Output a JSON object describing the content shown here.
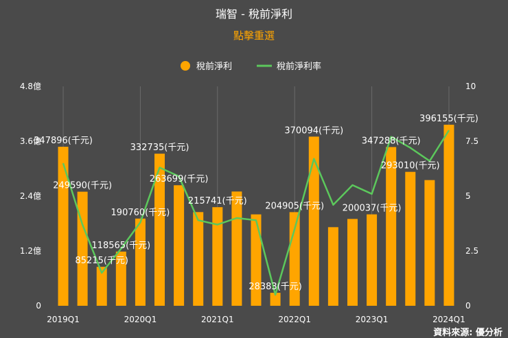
{
  "title": "瑞智 - 稅前淨利",
  "subtitle": "點擊重選",
  "source": "資料來源: 優分析",
  "colors": {
    "background": "#4a4a4a",
    "bar": "#ffa500",
    "line": "#5cc85c",
    "title": "#ffffff",
    "subtitle": "#ffa500",
    "axis_text": "#ffffff",
    "label_text": "#ffffff",
    "gridline": "#6b6b6b"
  },
  "legend": {
    "bar_label": "稅前淨利",
    "line_label": "稅前淨利率",
    "bar_icon": "orange-circle-icon",
    "line_icon": "green-line-icon"
  },
  "chart_data": {
    "type": "bar+line",
    "categories": [
      "2019Q1",
      "2019Q2",
      "2019Q3",
      "2019Q4",
      "2020Q1",
      "2020Q2",
      "2020Q3",
      "2020Q4",
      "2021Q1",
      "2021Q2",
      "2021Q3",
      "2021Q4",
      "2022Q1",
      "2022Q2",
      "2022Q3",
      "2022Q4",
      "2023Q1",
      "2023Q2",
      "2023Q3",
      "2023Q4",
      "2024Q1"
    ],
    "x_tick_labels": [
      "2019Q1",
      "2020Q1",
      "2021Q1",
      "2022Q1",
      "2023Q1",
      "2024Q1"
    ],
    "x_tick_indices": [
      0,
      4,
      8,
      12,
      16,
      20
    ],
    "series": [
      {
        "name": "稅前淨利",
        "type": "bar",
        "axis": "left",
        "values": [
          347896,
          249590,
          85215,
          118565,
          190760,
          332735,
          263699,
          205000,
          215741,
          250000,
          200000,
          28383,
          204905,
          370094,
          172000,
          190000,
          200037,
          347288,
          293010,
          275000,
          396155
        ]
      },
      {
        "name": "稅前淨利率",
        "type": "line",
        "axis": "right",
        "values": [
          6.5,
          3.7,
          1.5,
          2.6,
          3.8,
          6.3,
          5.9,
          3.9,
          3.7,
          4.0,
          3.9,
          0.5,
          3.5,
          6.7,
          4.6,
          5.5,
          5.1,
          7.7,
          7.2,
          6.6,
          8.0
        ]
      }
    ],
    "data_labels": [
      {
        "index": 0,
        "text": "347896(千元)"
      },
      {
        "index": 1,
        "text": "249590(千元)"
      },
      {
        "index": 2,
        "text": "85215(千元)"
      },
      {
        "index": 3,
        "text": "118565(千元)"
      },
      {
        "index": 4,
        "text": "190760(千元)"
      },
      {
        "index": 5,
        "text": "332735(千元)"
      },
      {
        "index": 6,
        "text": "263699(千元)"
      },
      {
        "index": 8,
        "text": "215741(千元)"
      },
      {
        "index": 11,
        "text": "28383(千元)"
      },
      {
        "index": 12,
        "text": "204905(千元)"
      },
      {
        "index": 13,
        "text": "370094(千元)"
      },
      {
        "index": 16,
        "text": "200037(千元)"
      },
      {
        "index": 17,
        "text": "347288(千元)"
      },
      {
        "index": 18,
        "text": "293010(千元)"
      },
      {
        "index": 20,
        "text": "396155(千元)"
      }
    ],
    "y_left": {
      "min": 0,
      "max": 480000,
      "ticks": [
        0,
        120000,
        240000,
        360000,
        480000
      ],
      "tick_labels": [
        "0",
        "1.2億",
        "2.4億",
        "3.6億",
        "4.8億"
      ]
    },
    "y_right": {
      "min": 0,
      "max": 10,
      "ticks": [
        0,
        2.5,
        5,
        7.5,
        10
      ],
      "tick_labels": [
        "0",
        "2.5",
        "5",
        "7.5",
        "10"
      ]
    },
    "grid": "vertical-at-x-ticks",
    "legend_position": "top-center"
  }
}
